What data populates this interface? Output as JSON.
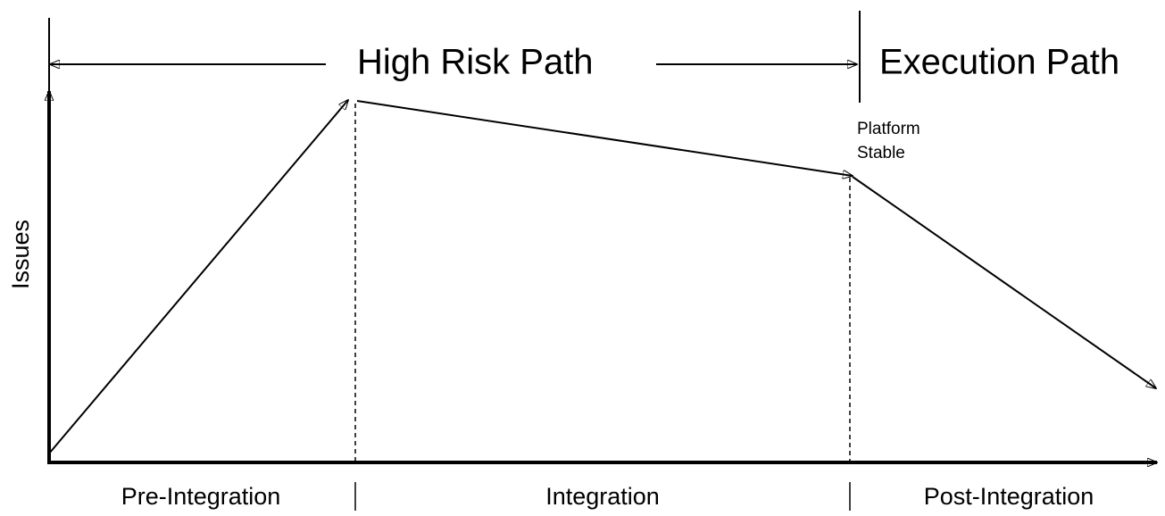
{
  "header": {
    "left_span": "High Risk Path",
    "right_span": "Execution Path"
  },
  "axis": {
    "y_label": "Issues"
  },
  "annotation": {
    "lines": [
      "Platform",
      "Stable"
    ]
  },
  "phases": [
    "Pre-Integration",
    "Integration",
    "Post-Integration"
  ]
}
